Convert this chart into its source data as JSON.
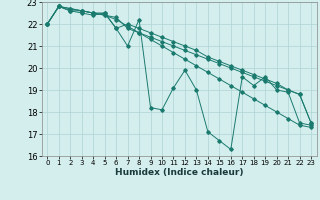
{
  "xlabel": "Humidex (Indice chaleur)",
  "xlim": [
    -0.5,
    23.5
  ],
  "ylim": [
    16,
    23
  ],
  "yticks": [
    16,
    17,
    18,
    19,
    20,
    21,
    22,
    23
  ],
  "xticks": [
    0,
    1,
    2,
    3,
    4,
    5,
    6,
    7,
    8,
    9,
    10,
    11,
    12,
    13,
    14,
    15,
    16,
    17,
    18,
    19,
    20,
    21,
    22,
    23
  ],
  "background_color": "#d4eeee",
  "grid_color": "#aed4d4",
  "line_color": "#1a7a6e",
  "series": [
    {
      "x": [
        0,
        1,
        2,
        3,
        4,
        5,
        6,
        7,
        8,
        9,
        10,
        11,
        12,
        13,
        14,
        15,
        16,
        17,
        18,
        19,
        20,
        21,
        22,
        23
      ],
      "y": [
        22.0,
        22.8,
        22.6,
        22.6,
        22.5,
        22.5,
        21.8,
        21.0,
        22.2,
        18.2,
        18.1,
        19.1,
        19.9,
        19.0,
        17.1,
        16.7,
        16.3,
        19.6,
        19.2,
        19.6,
        19.0,
        18.9,
        17.5,
        17.4
      ]
    },
    {
      "x": [
        0,
        1,
        2,
        3,
        4,
        5,
        6,
        7,
        8,
        9,
        10,
        11,
        12,
        13,
        14,
        15,
        16,
        17,
        18,
        19,
        20,
        21,
        22,
        23
      ],
      "y": [
        22.0,
        22.8,
        22.6,
        22.5,
        22.4,
        22.5,
        21.8,
        22.0,
        21.8,
        21.6,
        21.4,
        21.2,
        21.0,
        20.8,
        20.5,
        20.3,
        20.1,
        19.9,
        19.7,
        19.5,
        19.3,
        19.0,
        18.8,
        17.5
      ]
    },
    {
      "x": [
        0,
        1,
        2,
        3,
        4,
        5,
        6,
        7,
        8,
        9,
        10,
        11,
        12,
        13,
        14,
        15,
        16,
        17,
        18,
        19,
        20,
        21,
        22,
        23
      ],
      "y": [
        22.0,
        22.8,
        22.7,
        22.6,
        22.5,
        22.4,
        22.3,
        21.8,
        21.6,
        21.4,
        21.2,
        21.0,
        20.8,
        20.6,
        20.4,
        20.2,
        20.0,
        19.8,
        19.6,
        19.4,
        19.2,
        19.0,
        18.8,
        17.5
      ]
    },
    {
      "x": [
        0,
        1,
        2,
        3,
        4,
        5,
        6,
        7,
        8,
        9,
        10,
        11,
        12,
        13,
        14,
        15,
        16,
        17,
        18,
        19,
        20,
        21,
        22,
        23
      ],
      "y": [
        22.0,
        22.8,
        22.7,
        22.6,
        22.5,
        22.4,
        22.2,
        21.9,
        21.6,
        21.3,
        21.0,
        20.7,
        20.4,
        20.1,
        19.8,
        19.5,
        19.2,
        18.9,
        18.6,
        18.3,
        18.0,
        17.7,
        17.4,
        17.3
      ]
    }
  ]
}
